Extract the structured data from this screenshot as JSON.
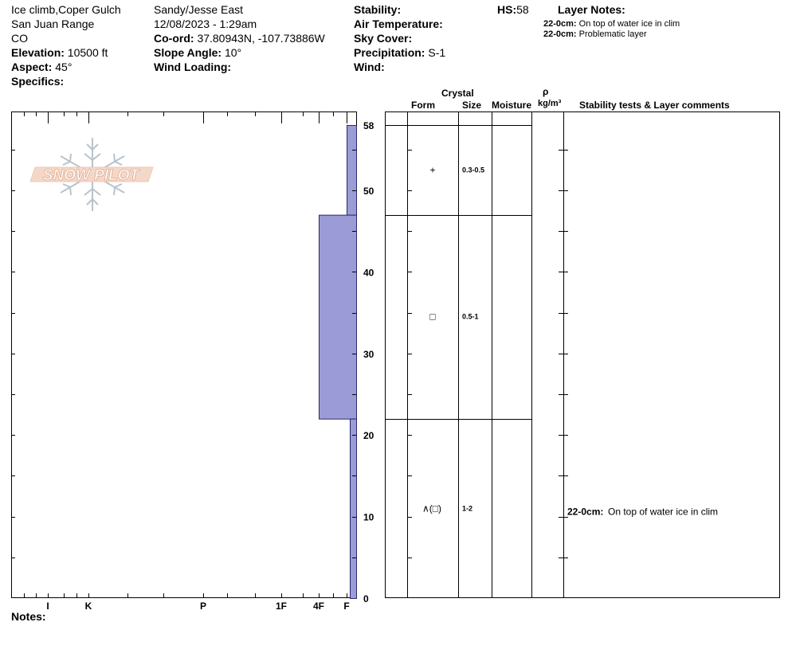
{
  "header": {
    "location": "Ice climb,Coper Gulch",
    "range": "San Juan Range",
    "state": "CO",
    "elevation_label": "Elevation:",
    "elevation_value": "10500 ft",
    "aspect_label": "Aspect:",
    "aspect_value": "45°",
    "specifics_label": "Specifics:",
    "observer": "Sandy/Jesse East",
    "datetime": "12/08/2023 - 1:29am",
    "coord_label": "Co-ord:",
    "coord_value": "37.80943N, -107.73886W",
    "slope_label": "Slope Angle:",
    "slope_value": "10°",
    "wind_loading_label": "Wind Loading:",
    "stability_label": "Stability:",
    "air_temp_label": "Air Temperature:",
    "sky_cover_label": "Sky Cover:",
    "precip_label": "Precipitation:",
    "precip_value": "S-1",
    "wind_label": "Wind:",
    "hs_label": "HS:",
    "hs_value": "58",
    "layer_notes_title": "Layer Notes:",
    "layer_notes": [
      {
        "depth": "22-0cm:",
        "text": "On top of water ice in clim"
      },
      {
        "depth": "22-0cm:",
        "text": "Problematic layer"
      }
    ]
  },
  "logo": {
    "text": "SNOW PILOT"
  },
  "notes_label": "Notes:",
  "columns": {
    "crystal": "Crystal",
    "form": "Form",
    "size": "Size",
    "moisture": "Moisture",
    "rho": "ρ",
    "density_unit": "kg/m³",
    "comments": "Stability tests & Layer comments"
  },
  "chart_data": {
    "type": "bar",
    "description_hint": "snow pit hardness profile",
    "y_axis": {
      "min": 0,
      "max": 58,
      "ticks": [
        0,
        10,
        20,
        30,
        40,
        50,
        58
      ]
    },
    "hardness_scale": [
      "I",
      "K",
      "P",
      "1F",
      "4F",
      "F"
    ],
    "layers": [
      {
        "top": 58,
        "bottom": 47,
        "hardness": "F",
        "form": "+",
        "size": "0.3-0.5",
        "comment": ""
      },
      {
        "top": 47,
        "bottom": 22,
        "hardness": "4F",
        "form": "□",
        "size": "0.5-1",
        "comment": ""
      },
      {
        "top": 22,
        "bottom": 0,
        "hardness": "F-",
        "form": "∧(□)",
        "size": "1-2",
        "comment_depth": "22-0cm:",
        "comment": "On top of water ice in clim"
      }
    ],
    "colors": {
      "bar": "#9b9bd7"
    }
  }
}
